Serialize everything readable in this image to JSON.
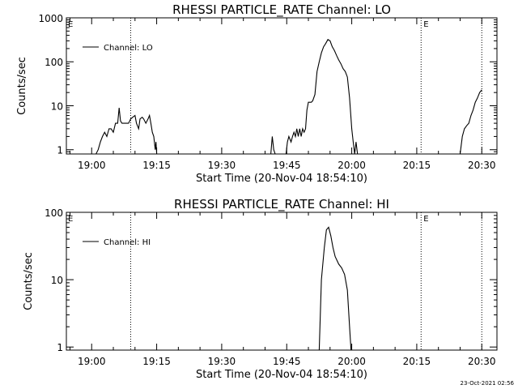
{
  "chart_data": [
    {
      "type": "line",
      "title": "RHESSI PARTICLE_RATE Channel: LO",
      "xlabel": "Start Time (20-Nov-04 18:54:10)",
      "ylabel": "Counts/sec",
      "xlim": [
        "18:54:10",
        "20:33:30"
      ],
      "ylim": [
        0.8,
        1000
      ],
      "yscale": "log",
      "x_ticks": [
        "19:00",
        "19:15",
        "19:30",
        "19:45",
        "20:00",
        "20:15",
        "20:30"
      ],
      "y_ticks": [
        {
          "value": 1,
          "label": "1"
        },
        {
          "value": 10,
          "label": "10"
        },
        {
          "value": 100,
          "label": "100"
        },
        {
          "value": 1000,
          "label": "1000"
        }
      ],
      "markers": [
        {
          "time": "19:09:00",
          "label": ""
        },
        {
          "time": "20:16:00",
          "label": "E"
        },
        {
          "time": "20:30:00",
          "label": ""
        }
      ],
      "corner_label": "E",
      "legend": {
        "entries": [
          "Channel: LO"
        ],
        "position": "top-left"
      },
      "series": [
        {
          "name": "Channel: LO",
          "points": [
            [
              "19:01:00",
              0.8
            ],
            [
              "19:01:30",
              1
            ],
            [
              "19:02:00",
              1.5
            ],
            [
              "19:02:30",
              2
            ],
            [
              "19:03:00",
              2.5
            ],
            [
              "19:03:30",
              2
            ],
            [
              "19:04:00",
              3
            ],
            [
              "19:04:30",
              3
            ],
            [
              "19:05:00",
              2.5
            ],
            [
              "19:05:30",
              4
            ],
            [
              "19:06:00",
              4
            ],
            [
              "19:06:20",
              9
            ],
            [
              "19:06:40",
              4.5
            ],
            [
              "19:07:00",
              4
            ],
            [
              "19:07:30",
              4
            ],
            [
              "19:08:00",
              4
            ],
            [
              "19:08:30",
              4
            ],
            [
              "19:09:00",
              5
            ],
            [
              "19:09:30",
              5.5
            ],
            [
              "19:10:00",
              6
            ],
            [
              "19:10:20",
              4
            ],
            [
              "19:10:50",
              3
            ],
            [
              "19:11:10",
              5
            ],
            [
              "19:11:40",
              5.5
            ],
            [
              "19:12:00",
              5
            ],
            [
              "19:12:30",
              4
            ],
            [
              "19:13:00",
              5
            ],
            [
              "19:13:20",
              6
            ],
            [
              "19:13:40",
              4
            ],
            [
              "19:14:00",
              2.5
            ],
            [
              "19:14:20",
              2
            ],
            [
              "19:14:40",
              1
            ],
            [
              "19:14:50",
              1.5
            ],
            [
              "19:15:00",
              0.8
            ],
            [
              "19:41:20",
              0.8
            ],
            [
              "19:41:40",
              2
            ],
            [
              "19:42:00",
              1
            ],
            [
              "19:42:20",
              0.8
            ],
            [
              "19:44:50",
              0.8
            ],
            [
              "19:45:10",
              1.5
            ],
            [
              "19:45:30",
              2
            ],
            [
              "19:46:00",
              1.5
            ],
            [
              "19:46:20",
              2
            ],
            [
              "19:46:40",
              2.5
            ],
            [
              "19:47:00",
              2
            ],
            [
              "19:47:20",
              3
            ],
            [
              "19:47:40",
              2
            ],
            [
              "19:48:00",
              3
            ],
            [
              "19:48:20",
              2
            ],
            [
              "19:48:40",
              3
            ],
            [
              "19:49:00",
              2.5
            ],
            [
              "19:49:20",
              3
            ],
            [
              "19:49:40",
              8
            ],
            [
              "19:50:00",
              12
            ],
            [
              "19:50:40",
              12
            ],
            [
              "19:51:00",
              13
            ],
            [
              "19:51:30",
              18
            ],
            [
              "19:52:00",
              60
            ],
            [
              "19:52:30",
              100
            ],
            [
              "19:53:00",
              160
            ],
            [
              "19:53:30",
              220
            ],
            [
              "19:54:00",
              260
            ],
            [
              "19:54:30",
              320
            ],
            [
              "19:55:00",
              300
            ],
            [
              "19:55:30",
              220
            ],
            [
              "19:56:00",
              180
            ],
            [
              "19:56:30",
              140
            ],
            [
              "19:57:00",
              110
            ],
            [
              "19:57:30",
              90
            ],
            [
              "19:58:00",
              70
            ],
            [
              "19:58:30",
              60
            ],
            [
              "19:59:00",
              45
            ],
            [
              "19:59:30",
              15
            ],
            [
              "20:00:00",
              3
            ],
            [
              "20:00:20",
              1.5
            ],
            [
              "20:00:40",
              0.8
            ],
            [
              "20:01:00",
              1.5
            ],
            [
              "20:01:20",
              0.8
            ],
            [
              "20:25:00",
              0.8
            ],
            [
              "20:25:30",
              2
            ],
            [
              "20:26:00",
              3
            ],
            [
              "20:26:30",
              3.5
            ],
            [
              "20:27:00",
              4
            ],
            [
              "20:27:30",
              6
            ],
            [
              "20:28:00",
              8
            ],
            [
              "20:28:30",
              12
            ],
            [
              "20:29:00",
              15
            ],
            [
              "20:29:30",
              20
            ],
            [
              "20:30:00",
              23
            ]
          ]
        }
      ]
    },
    {
      "type": "line",
      "title": "RHESSI PARTICLE_RATE Channel: HI",
      "xlabel": "Start Time (20-Nov-04 18:54:10)",
      "ylabel": "Counts/sec",
      "xlim": [
        "18:54:10",
        "20:33:30"
      ],
      "ylim": [
        0.9,
        100
      ],
      "yscale": "log",
      "x_ticks": [
        "19:00",
        "19:15",
        "19:30",
        "19:45",
        "20:00",
        "20:15",
        "20:30"
      ],
      "y_ticks": [
        {
          "value": 1,
          "label": "1"
        },
        {
          "value": 10,
          "label": "10"
        },
        {
          "value": 100,
          "label": "100"
        }
      ],
      "markers": [
        {
          "time": "19:09:00",
          "label": ""
        },
        {
          "time": "20:16:00",
          "label": "E"
        },
        {
          "time": "20:30:00",
          "label": ""
        }
      ],
      "corner_label": "E",
      "legend": {
        "entries": [
          "Channel: HI"
        ],
        "position": "top-left"
      },
      "series": [
        {
          "name": "Channel: HI",
          "points": [
            [
              "19:52:30",
              0.9
            ],
            [
              "19:53:00",
              10
            ],
            [
              "19:53:40",
              30
            ],
            [
              "19:54:10",
              55
            ],
            [
              "19:54:40",
              60
            ],
            [
              "19:55:10",
              45
            ],
            [
              "19:55:40",
              30
            ],
            [
              "19:56:10",
              22
            ],
            [
              "19:57:00",
              17
            ],
            [
              "19:57:40",
              15
            ],
            [
              "19:58:20",
              12
            ],
            [
              "19:59:00",
              7
            ],
            [
              "19:59:30",
              2
            ],
            [
              "19:59:50",
              0.9
            ]
          ]
        }
      ]
    }
  ],
  "footer": {
    "timestamp": "23-Oct-2021 02:56"
  }
}
